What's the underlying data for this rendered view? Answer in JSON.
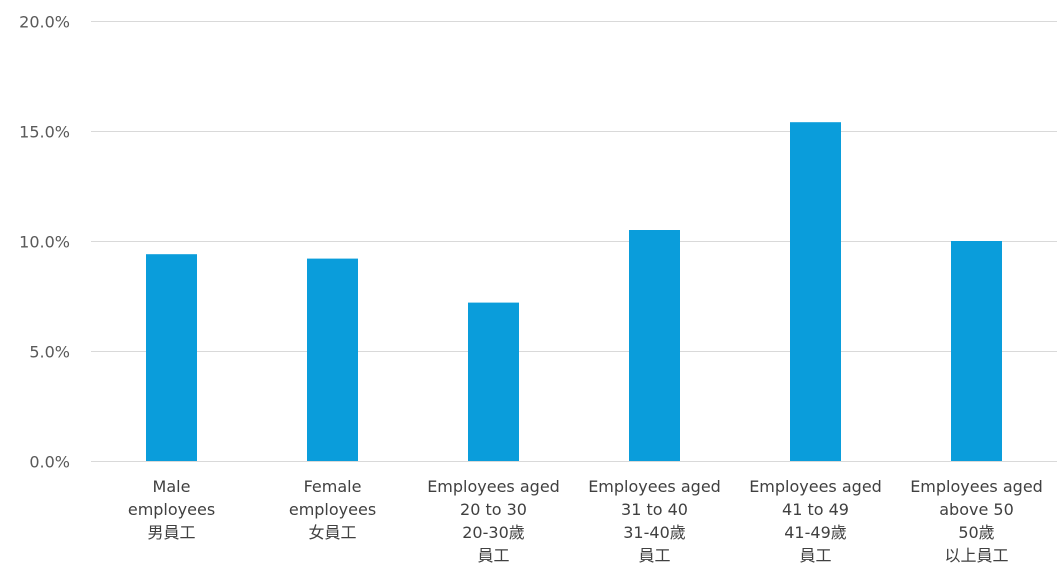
{
  "chart_data": {
    "type": "bar",
    "title": "",
    "xlabel": "",
    "ylabel": "",
    "ylim": [
      0,
      20
    ],
    "y_ticks": [
      0,
      5,
      10,
      15,
      20
    ],
    "y_tick_labels": [
      "0.0%",
      "5.0%",
      "10.0%",
      "15.0%",
      "20.0%"
    ],
    "grid": true,
    "bar_color": "#0a9ddb",
    "categories": [
      {
        "lines": [
          "Male",
          "employees",
          "男員工"
        ]
      },
      {
        "lines": [
          "Female",
          "employees",
          "女員工"
        ]
      },
      {
        "lines": [
          "Employees aged",
          "20 to 30",
          "20-30歲",
          "員工"
        ]
      },
      {
        "lines": [
          "Employees aged",
          "31 to 40",
          "31-40歲",
          "員工"
        ]
      },
      {
        "lines": [
          "Employees aged",
          "41 to 49",
          "41-49歲",
          "員工"
        ]
      },
      {
        "lines": [
          "Employees aged",
          "above 50",
          "50歲",
          "以上員工"
        ]
      }
    ],
    "values": [
      9.4,
      9.2,
      7.2,
      10.5,
      15.4,
      10.0
    ]
  }
}
